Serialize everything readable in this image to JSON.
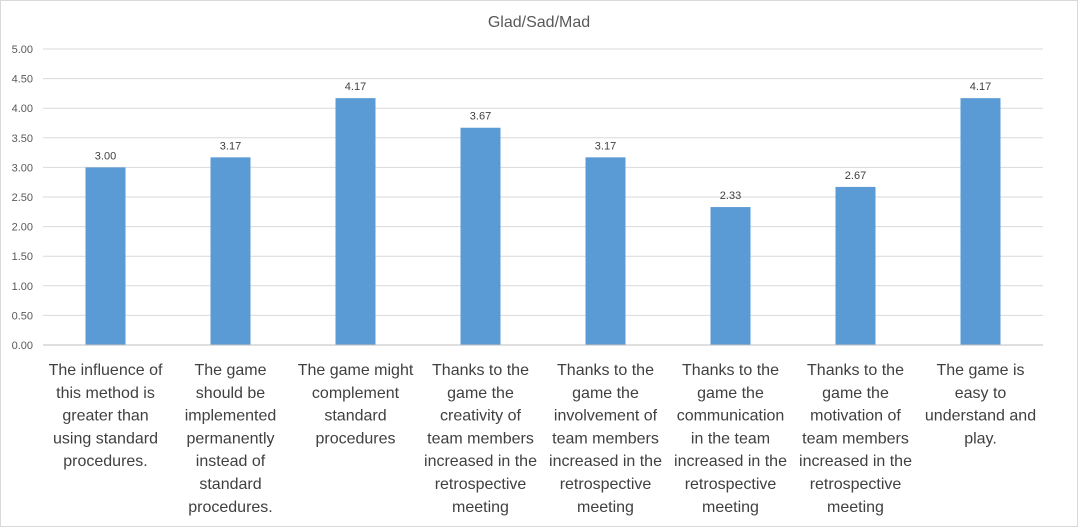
{
  "chart_data": {
    "type": "bar",
    "title": "Glad/Sad/Mad",
    "xlabel": "",
    "ylabel": "",
    "ylim": [
      0,
      5
    ],
    "ytick_step": 0.5,
    "ytick_labels": [
      "0.00",
      "0.50",
      "1.00",
      "1.50",
      "2.00",
      "2.50",
      "3.00",
      "3.50",
      "4.00",
      "4.50",
      "5.00"
    ],
    "grid": true,
    "legend": "none",
    "bar_color": "#5b9bd5",
    "categories": [
      "The influence of this method is greater than using standard procedures.",
      "The game should be implemented permanently instead of standard procedures.",
      "The game might complement standard procedures",
      "Thanks to the game the creativity of team members increased in the retrospective meeting",
      "Thanks to the game the involvement of team members increased in the retrospective meeting",
      "Thanks to the game the communication in the team increased in the retrospective meeting",
      "Thanks to the game the motivation of team members increased in the retrospective meeting",
      "The game is easy to understand and play."
    ],
    "category_lines": [
      [
        "The influence of",
        "this method is",
        "greater than",
        "using standard",
        "procedures."
      ],
      [
        "The game",
        "should be",
        "implemented",
        "permanently",
        "instead of",
        "standard",
        "procedures."
      ],
      [
        "The game might",
        "complement",
        "standard",
        "procedures"
      ],
      [
        "Thanks to the",
        "game the",
        "creativity of",
        "team members",
        "increased in the",
        "retrospective",
        "meeting"
      ],
      [
        "Thanks to the",
        "game the",
        "involvement of",
        "team members",
        "increased in the",
        "retrospective",
        "meeting"
      ],
      [
        "Thanks to the",
        "game the",
        "communication",
        "in the team",
        "increased in the",
        "retrospective",
        "meeting"
      ],
      [
        "Thanks to the",
        "game the",
        "motivation of",
        "team members",
        "increased in the",
        "retrospective",
        "meeting"
      ],
      [
        "The game is",
        "easy to",
        "understand and",
        "play."
      ]
    ],
    "values": [
      3.0,
      3.17,
      4.17,
      3.67,
      3.17,
      2.33,
      2.67,
      4.17
    ],
    "value_labels": [
      "3.00",
      "3.17",
      "4.17",
      "3.67",
      "3.17",
      "2.33",
      "2.67",
      "4.17"
    ]
  }
}
